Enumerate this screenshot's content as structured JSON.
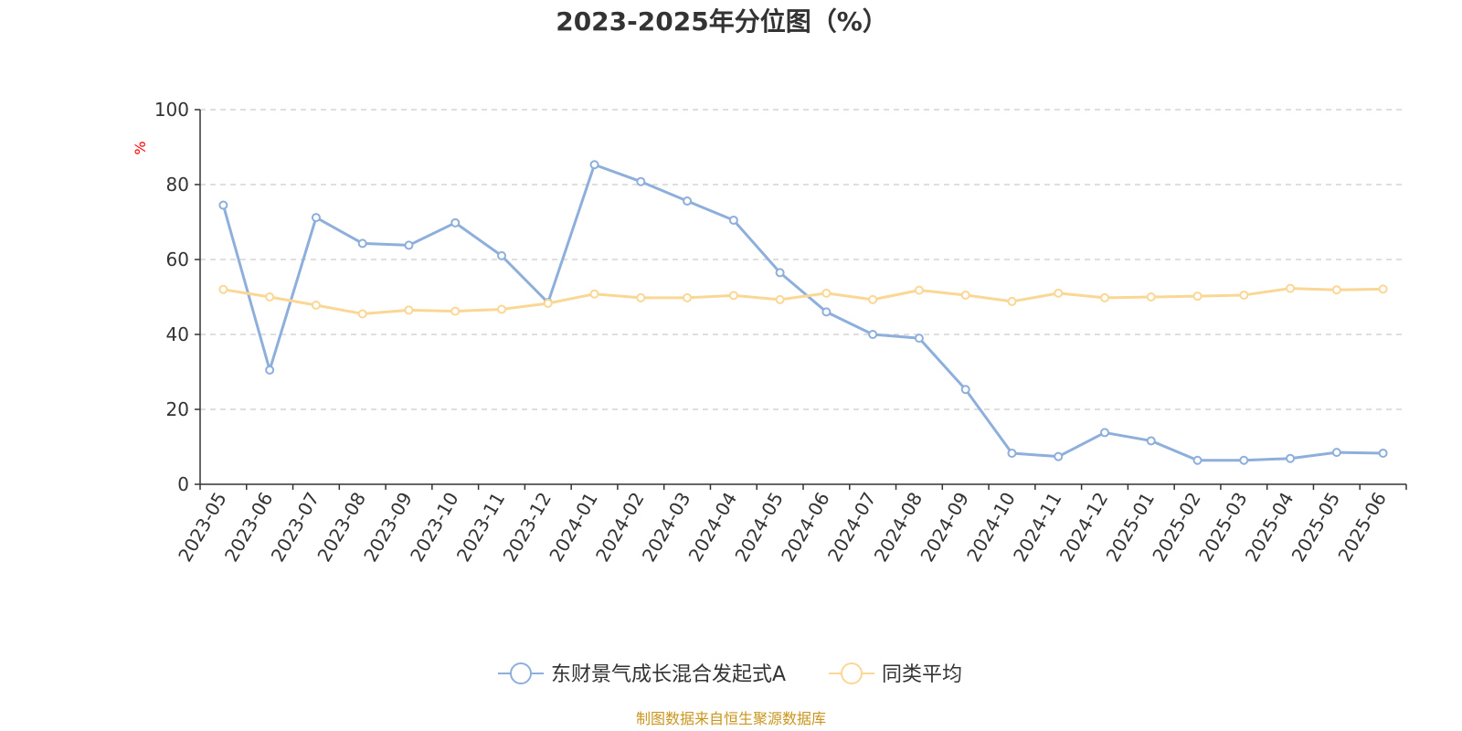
{
  "chart_data": {
    "type": "line",
    "title": "2023-2025年分位图（%）",
    "ylabel": "%",
    "ylim": [
      0,
      100
    ],
    "yticks": [
      0,
      20,
      40,
      60,
      80,
      100
    ],
    "grid": true,
    "legend_position": "bottom-center",
    "categories": [
      "2023-05",
      "2023-06",
      "2023-07",
      "2023-08",
      "2023-09",
      "2023-10",
      "2023-11",
      "2023-12",
      "2024-01",
      "2024-02",
      "2024-03",
      "2024-04",
      "2024-05",
      "2024-06",
      "2024-07",
      "2024-08",
      "2024-09",
      "2024-10",
      "2024-11",
      "2024-12",
      "2025-01",
      "2025-02",
      "2025-03",
      "2025-04",
      "2025-05",
      "2025-06"
    ],
    "series": [
      {
        "name": "东财景气成长混合发起式A",
        "color": "#8eafdb",
        "values": [
          74.5,
          30.5,
          71.2,
          64.3,
          63.8,
          69.8,
          61.0,
          48.5,
          85.3,
          80.8,
          75.6,
          70.5,
          56.5,
          46.0,
          40.0,
          39.0,
          25.3,
          8.3,
          7.4,
          13.8,
          11.6,
          6.4,
          6.4,
          6.9,
          8.5,
          8.3
        ]
      },
      {
        "name": "同类平均",
        "color": "#fbd795",
        "values": [
          52.0,
          50.0,
          47.8,
          45.5,
          46.5,
          46.2,
          46.7,
          48.3,
          50.8,
          49.8,
          49.8,
          50.4,
          49.3,
          51.0,
          49.3,
          51.8,
          50.5,
          48.8,
          51.0,
          49.8,
          50.0,
          50.2,
          50.5,
          52.3,
          51.9,
          52.1
        ]
      }
    ]
  },
  "source_text": "制图数据来自恒生聚源数据库"
}
